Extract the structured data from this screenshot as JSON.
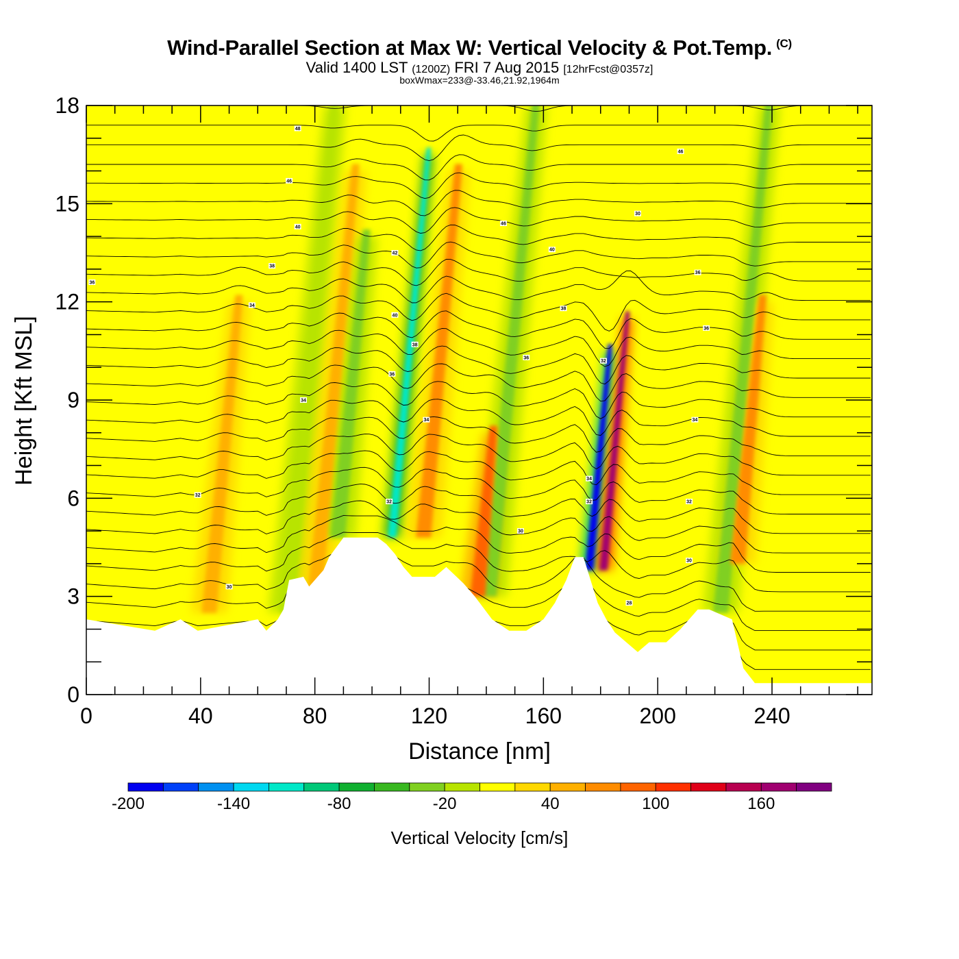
{
  "header": {
    "title": "Wind-Parallel Section at Max W: Vertical Velocity & Pot.Temp.",
    "copyright": "(C)",
    "valid_prefix": "Valid 1400 LST",
    "valid_utc": "(1200Z)",
    "valid_date": "FRI 7 Aug 2015",
    "forecast": "[12hrFcst@0357z]",
    "box_wmax": "boxWmax=233@-33.46,21.92,1964m"
  },
  "chart_data": {
    "type": "heatmap",
    "xlabel": "Distance [nm]",
    "ylabel": "Height [Kft MSL]",
    "xlim": [
      0,
      275
    ],
    "ylim": [
      0,
      18
    ],
    "xticks": [
      0,
      40,
      80,
      120,
      160,
      200,
      240
    ],
    "yticks": [
      0,
      3,
      6,
      9,
      12,
      15,
      18
    ],
    "colorbar": {
      "title": "Vertical Velocity [cm/s]",
      "min": -200,
      "max": 200,
      "step": 20,
      "labels": [
        -200,
        -140,
        -80,
        -20,
        40,
        100,
        160
      ],
      "colors": [
        "#0000f0",
        "#0040f8",
        "#0090f0",
        "#00d8f0",
        "#00e8c8",
        "#00c878",
        "#10b030",
        "#38b820",
        "#80d020",
        "#b8e400",
        "#ffff00",
        "#ffd800",
        "#ffb000",
        "#ff8c00",
        "#ff6400",
        "#ff3000",
        "#e00018",
        "#b80050",
        "#a00070",
        "#800080"
      ]
    },
    "vertical_velocity_features": [
      {
        "x": 43,
        "z_range": [
          2.5,
          12
        ],
        "w": 50
      },
      {
        "x": 70,
        "z_range": [
          2.5,
          18
        ],
        "w": -20
      },
      {
        "x": 80,
        "z_range": [
          3,
          16
        ],
        "w": 40
      },
      {
        "x": 88,
        "z_range": [
          4.8,
          14
        ],
        "w": -40
      },
      {
        "x": 107,
        "z_range": [
          4.8,
          16.5
        ],
        "w": -110
      },
      {
        "x": 118,
        "z_range": [
          4.8,
          16
        ],
        "w": 70
      },
      {
        "x": 141,
        "z_range": [
          3,
          18
        ],
        "w": -40
      },
      {
        "x": 137,
        "z_range": [
          3,
          8
        ],
        "w": 80
      },
      {
        "x": 176,
        "z_range": [
          3.8,
          10.5
        ],
        "w": -200
      },
      {
        "x": 181,
        "z_range": [
          3.8,
          11.5
        ],
        "w": 170
      },
      {
        "x": 222,
        "z_range": [
          2.5,
          18
        ],
        "w": -30
      },
      {
        "x": 228,
        "z_range": [
          4,
          12
        ],
        "w": 70
      }
    ],
    "terrain": {
      "x": [
        0,
        24,
        33,
        39,
        60,
        63,
        67,
        69,
        71,
        76,
        78,
        83,
        85,
        90,
        102,
        105,
        108,
        111,
        114,
        122,
        126,
        132,
        136,
        142,
        148,
        154,
        160,
        164,
        168,
        171,
        174,
        179,
        182,
        185,
        189,
        193,
        197,
        203,
        208,
        214,
        218,
        226,
        230,
        234,
        240,
        260,
        275
      ],
      "height": [
        2.3,
        1.95,
        2.3,
        1.95,
        2.3,
        1.95,
        2.3,
        2.6,
        3.5,
        3.6,
        3.3,
        3.8,
        4.2,
        4.8,
        4.8,
        4.6,
        4.3,
        3.9,
        3.6,
        3.6,
        3.9,
        3.4,
        3.0,
        2.3,
        1.95,
        1.95,
        2.3,
        2.8,
        3.5,
        4.2,
        4.2,
        2.8,
        2.3,
        1.9,
        1.6,
        1.3,
        1.6,
        1.6,
        2.0,
        2.6,
        2.6,
        2.3,
        0.8,
        0.35,
        0.35,
        0.35,
        0.35
      ]
    },
    "potential_temperature_labels": [
      {
        "text": "48",
        "x": 74,
        "z": 17.3
      },
      {
        "text": "46",
        "x": 71,
        "z": 15.7
      },
      {
        "text": "40",
        "x": 74,
        "z": 14.3
      },
      {
        "text": "38",
        "x": 65,
        "z": 13.1
      },
      {
        "text": "36",
        "x": 2,
        "z": 12.6
      },
      {
        "text": "34",
        "x": 58,
        "z": 11.9
      },
      {
        "text": "34",
        "x": 76,
        "z": 9.0
      },
      {
        "text": "32",
        "x": 39,
        "z": 6.1
      },
      {
        "text": "30",
        "x": 50,
        "z": 3.3
      },
      {
        "text": "42",
        "x": 108,
        "z": 13.5
      },
      {
        "text": "40",
        "x": 108,
        "z": 11.6
      },
      {
        "text": "38",
        "x": 115,
        "z": 10.7
      },
      {
        "text": "36",
        "x": 107,
        "z": 9.8
      },
      {
        "text": "34",
        "x": 119,
        "z": 8.4
      },
      {
        "text": "32",
        "x": 106,
        "z": 5.9
      },
      {
        "text": "46",
        "x": 146,
        "z": 14.4
      },
      {
        "text": "40",
        "x": 163,
        "z": 13.6
      },
      {
        "text": "38",
        "x": 167,
        "z": 11.8
      },
      {
        "text": "36",
        "x": 154,
        "z": 10.3
      },
      {
        "text": "30",
        "x": 152,
        "z": 5.0
      },
      {
        "text": "30",
        "x": 193,
        "z": 14.7
      },
      {
        "text": "46",
        "x": 208,
        "z": 16.6
      },
      {
        "text": "36",
        "x": 214,
        "z": 12.9
      },
      {
        "text": "36",
        "x": 217,
        "z": 11.2
      },
      {
        "text": "34",
        "x": 213,
        "z": 8.4
      },
      {
        "text": "32",
        "x": 181,
        "z": 10.2
      },
      {
        "text": "32",
        "x": 211,
        "z": 5.9
      },
      {
        "text": "30",
        "x": 211,
        "z": 4.1
      },
      {
        "text": "28",
        "x": 190,
        "z": 2.8
      },
      {
        "text": "34",
        "x": 176,
        "z": 6.6
      },
      {
        "text": "32",
        "x": 176,
        "z": 5.9
      }
    ]
  }
}
